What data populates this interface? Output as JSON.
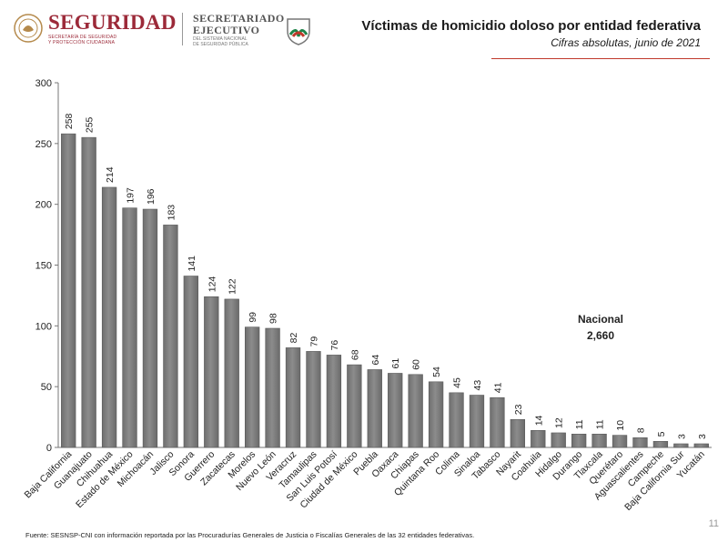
{
  "header": {
    "brand_main": "SEGURIDAD",
    "brand_sub_1": "SECRETARÍA DE SEGURIDAD",
    "brand_sub_2": "Y PROTECCIÓN CIUDADANA",
    "sec_main_1": "SECRETARIADO",
    "sec_main_2": "EJECUTIVO",
    "sec_sub_1": "DEL SISTEMA NACIONAL",
    "sec_sub_2": "DE SEGURIDAD PÚBLICA",
    "brand_color": "#9c2a39"
  },
  "chart_data": {
    "type": "bar",
    "title": "Víctimas de homicidio doloso por entidad federativa",
    "subtitle": "Cifras absolutas, junio de 2021",
    "categories": [
      "Baja California",
      "Guanajuato",
      "Chihuahua",
      "Estado de México",
      "Michoacán",
      "Jalisco",
      "Sonora",
      "Guerrero",
      "Zacatecas",
      "Morelos",
      "Nuevo León",
      "Veracruz",
      "Tamaulipas",
      "San Luis Potosí",
      "Ciudad de México",
      "Puebla",
      "Oaxaca",
      "Chiapas",
      "Quintana Roo",
      "Colima",
      "Sinaloa",
      "Tabasco",
      "Nayarit",
      "Coahuila",
      "Hidalgo",
      "Durango",
      "Tlaxcala",
      "Querétaro",
      "Aguascalientes",
      "Campeche",
      "Baja California Sur",
      "Yucatán"
    ],
    "values": [
      258,
      255,
      214,
      197,
      196,
      183,
      141,
      124,
      122,
      99,
      98,
      82,
      79,
      76,
      68,
      64,
      61,
      60,
      54,
      45,
      43,
      41,
      23,
      14,
      12,
      11,
      11,
      10,
      8,
      5,
      3,
      3
    ],
    "ylim": [
      0,
      300
    ],
    "yticks": [
      0,
      50,
      100,
      150,
      200,
      250,
      300
    ],
    "grid": false,
    "bar_color": "#8c8c8c",
    "annotation": {
      "label": "Nacional",
      "value": "2,660"
    }
  },
  "footer": "Fuente: SESNSP-CNI con información reportada por las Procuradurías Generales de Justicia o Fiscalías Generales de las 32 entidades federativas.",
  "page_number": "11"
}
